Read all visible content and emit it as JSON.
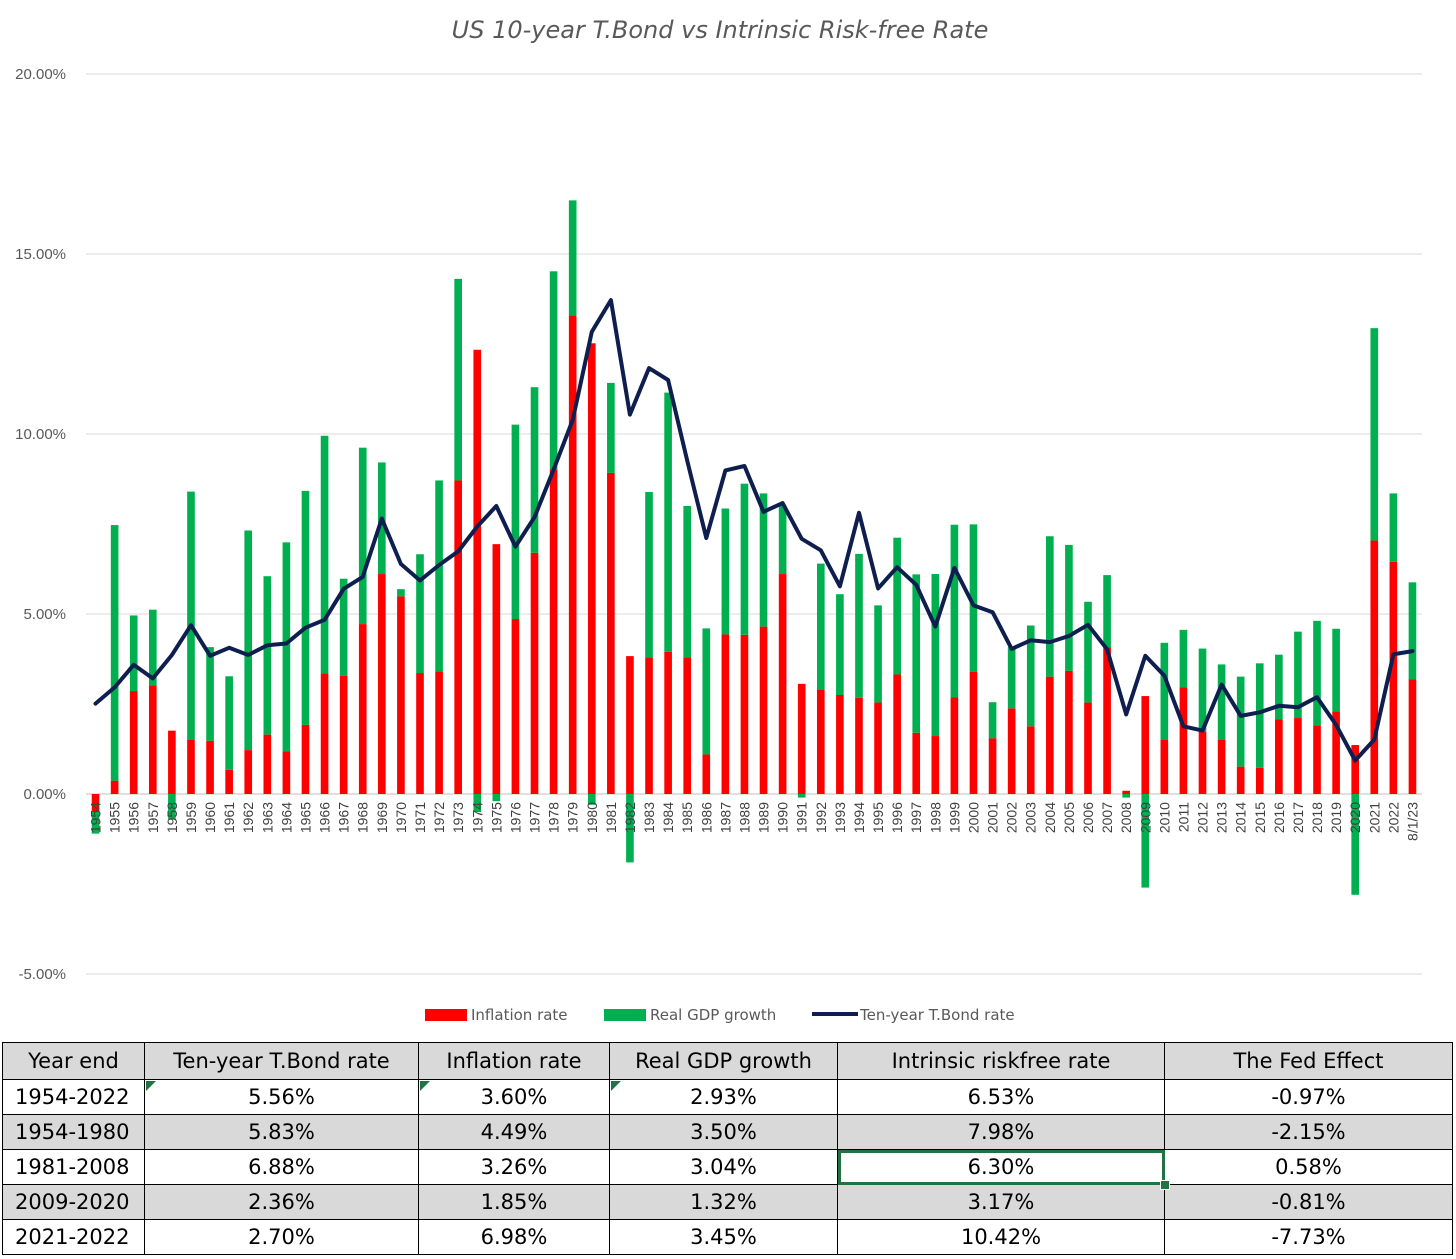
{
  "chart_data": {
    "type": "bar",
    "stacked": true,
    "title": "US 10-year T.Bond vs Intrinsic Risk-free Rate",
    "ylim": [
      -5,
      20
    ],
    "yticks": [
      -5,
      0,
      5,
      10,
      15,
      20
    ],
    "ytick_labels": [
      "-5.00%",
      "0.00%",
      "5.00%",
      "10.00%",
      "15.00%",
      "20.00%"
    ],
    "categories": [
      "1954",
      "1955",
      "1956",
      "1957",
      "1958",
      "1959",
      "1960",
      "1961",
      "1962",
      "1963",
      "1964",
      "1965",
      "1966",
      "1967",
      "1968",
      "1969",
      "1970",
      "1971",
      "1972",
      "1973",
      "1974",
      "1975",
      "1976",
      "1977",
      "1978",
      "1979",
      "1980",
      "1981",
      "1982",
      "1983",
      "1984",
      "1985",
      "1986",
      "1987",
      "1988",
      "1989",
      "1990",
      "1991",
      "1992",
      "1993",
      "1994",
      "1995",
      "1996",
      "1997",
      "1998",
      "1999",
      "2000",
      "2001",
      "2002",
      "2003",
      "2004",
      "2005",
      "2006",
      "2007",
      "2008",
      "2009",
      "2010",
      "2011",
      "2012",
      "2013",
      "2014",
      "2015",
      "2016",
      "2017",
      "2018",
      "2019",
      "2020",
      "2021",
      "2022",
      "8/1/23"
    ],
    "series": [
      {
        "name": "Inflation rate",
        "kind": "bar",
        "color": "#ff0000",
        "values": [
          -0.5,
          0.37,
          2.86,
          3.02,
          1.76,
          1.5,
          1.48,
          0.67,
          1.22,
          1.65,
          1.19,
          1.92,
          3.35,
          3.28,
          4.72,
          6.11,
          5.49,
          3.36,
          3.41,
          8.71,
          12.34,
          6.94,
          4.86,
          6.7,
          9.02,
          13.29,
          12.52,
          8.92,
          3.83,
          3.79,
          3.95,
          3.8,
          1.1,
          4.43,
          4.42,
          4.65,
          6.11,
          3.06,
          2.9,
          2.75,
          2.67,
          2.54,
          3.32,
          1.7,
          1.61,
          2.68,
          3.39,
          1.55,
          2.38,
          1.88,
          3.26,
          3.42,
          2.54,
          4.08,
          0.09,
          2.72,
          1.5,
          2.96,
          1.74,
          1.5,
          0.76,
          0.73,
          2.07,
          2.11,
          1.91,
          2.29,
          1.36,
          7.04,
          6.45,
          3.18
        ]
      },
      {
        "name": "Real GDP growth",
        "kind": "bar",
        "color": "#00b050",
        "values": [
          -0.6,
          7.1,
          2.1,
          2.1,
          -0.7,
          6.9,
          2.6,
          2.6,
          6.1,
          4.4,
          5.8,
          6.5,
          6.6,
          2.7,
          4.9,
          3.1,
          0.2,
          3.3,
          5.3,
          5.6,
          -0.5,
          -0.2,
          5.4,
          4.6,
          5.5,
          3.2,
          -0.3,
          2.5,
          -1.9,
          4.6,
          7.2,
          4.2,
          3.5,
          3.5,
          4.2,
          3.7,
          1.9,
          -0.1,
          3.5,
          2.8,
          4.0,
          2.7,
          3.8,
          4.4,
          4.5,
          4.8,
          4.1,
          1.0,
          1.7,
          2.8,
          3.9,
          3.5,
          2.8,
          2.0,
          -0.1,
          -2.6,
          2.7,
          1.6,
          2.3,
          2.1,
          2.5,
          2.9,
          1.8,
          2.4,
          2.9,
          2.3,
          -2.8,
          5.9,
          1.9,
          2.7
        ]
      },
      {
        "name": "Ten-year T.Bond rate",
        "kind": "line",
        "color": "#0e1e4f",
        "values": [
          2.51,
          2.96,
          3.59,
          3.21,
          3.86,
          4.69,
          3.84,
          4.06,
          3.86,
          4.13,
          4.18,
          4.62,
          4.84,
          5.7,
          6.03,
          7.65,
          6.39,
          5.93,
          6.36,
          6.74,
          7.43,
          8.0,
          6.87,
          7.69,
          9.01,
          10.39,
          12.84,
          13.72,
          10.54,
          11.83,
          11.5,
          9.26,
          7.11,
          8.99,
          9.11,
          7.84,
          8.08,
          7.09,
          6.77,
          5.77,
          7.81,
          5.71,
          6.3,
          5.81,
          4.65,
          6.28,
          5.24,
          5.05,
          4.03,
          4.27,
          4.22,
          4.39,
          4.7,
          4.02,
          2.21,
          3.84,
          3.29,
          1.88,
          1.76,
          3.04,
          2.17,
          2.27,
          2.45,
          2.41,
          2.69,
          1.92,
          0.93,
          1.51,
          3.88,
          3.97
        ]
      }
    ],
    "legend": [
      "Inflation rate",
      "Real GDP growth",
      "Ten-year T.Bond rate"
    ],
    "legend_position": "bottom"
  },
  "table": {
    "headers": [
      "Year end",
      "Ten-year T.Bond rate",
      "Inflation rate",
      "Real GDP growth",
      "Intrinsic riskfree rate",
      "The Fed Effect"
    ],
    "rows": [
      [
        "1954-2022",
        "5.56%",
        "3.60%",
        "2.93%",
        "6.53%",
        "-0.97%"
      ],
      [
        "1954-1980",
        "5.83%",
        "4.49%",
        "3.50%",
        "7.98%",
        "-2.15%"
      ],
      [
        "1981-2008",
        "6.88%",
        "3.26%",
        "3.04%",
        "6.30%",
        "0.58%"
      ],
      [
        "2009-2020",
        "2.36%",
        "1.85%",
        "1.32%",
        "3.17%",
        "-0.81%"
      ],
      [
        "2021-2022",
        "2.70%",
        "6.98%",
        "3.45%",
        "10.42%",
        "-7.73%"
      ]
    ]
  }
}
